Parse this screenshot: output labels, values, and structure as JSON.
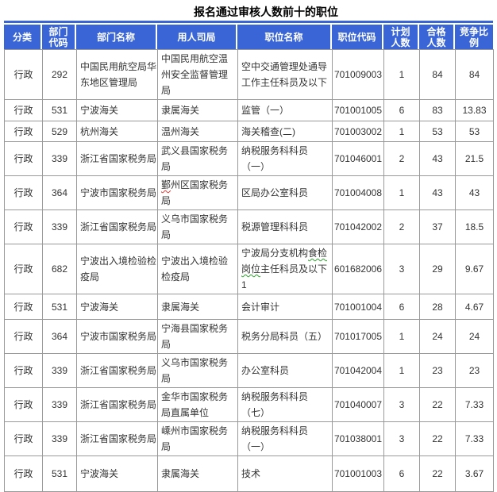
{
  "title": "报名通过审核人数前十的职位",
  "colors": {
    "header_bg": "#3a65d6",
    "header_text": "#ffffff",
    "border": "#999999",
    "body_text": "#333333",
    "spell_red": "#e53935",
    "spell_green": "#2ea12e"
  },
  "table": {
    "columns": [
      "分类",
      "部门代码",
      "部门名称",
      "用人司局",
      "职位名称",
      "职位代码",
      "计划人数",
      "合格人数",
      "竞争比例"
    ],
    "rows": [
      {
        "cells": [
          "行政",
          "292",
          "中国民用航空局华东地区管理局",
          "中国民用航空温州安全监督管理局",
          "空中交通管理处通导工作主任科员及以下",
          "701009003",
          "1",
          "84",
          "84"
        ]
      },
      {
        "cells": [
          "行政",
          "531",
          "宁波海关",
          "隶属海关",
          "监管（一）",
          "701001005",
          "6",
          "83",
          "13.83"
        ]
      },
      {
        "cells": [
          "行政",
          "529",
          "杭州海关",
          "温州海关",
          "海关稽查(二)",
          "701003002",
          "1",
          "53",
          "53"
        ]
      },
      {
        "cells": [
          "行政",
          "339",
          "浙江省国家税务局",
          "武义县国家税务局",
          "纳税服务科科员（一）",
          "701046001",
          "2",
          "43",
          "21.5"
        ]
      },
      {
        "cells": [
          "行政",
          "364",
          "宁波市国家税务局",
          "鄞州区国家税务局",
          "区局办公室科员",
          "701004008",
          "1",
          "43",
          "43"
        ],
        "marks": [
          {
            "col": 3,
            "text": "鄞",
            "color": "red"
          }
        ]
      },
      {
        "cells": [
          "行政",
          "339",
          "浙江省国家税务局",
          "义乌市国家税务局",
          "税源管理科科员",
          "701042002",
          "2",
          "37",
          "18.5"
        ]
      },
      {
        "cells": [
          "行政",
          "682",
          "宁波出入境检验检疫局",
          "宁波出入境检验检疫局",
          "宁波局分支机构食检岗位主任科员及以下1",
          "601682006",
          "3",
          "29",
          "9.67"
        ],
        "marks": [
          {
            "col": 4,
            "text": "食检",
            "color": "green"
          },
          {
            "col": 4,
            "text": "岗位",
            "color": "green"
          }
        ]
      },
      {
        "cells": [
          "行政",
          "531",
          "宁波海关",
          "隶属海关",
          "会计审计",
          "701001004",
          "6",
          "28",
          "4.67"
        ]
      },
      {
        "cells": [
          "行政",
          "364",
          "宁波市国家税务局",
          "宁海县国家税务局",
          "税务分局科员（五）",
          "701017005",
          "1",
          "24",
          "24"
        ]
      },
      {
        "cells": [
          "行政",
          "339",
          "浙江省国家税务局",
          "义乌市国家税务局",
          "办公室科员",
          "701042004",
          "1",
          "23",
          "23"
        ]
      },
      {
        "cells": [
          "行政",
          "339",
          "浙江省国家税务局",
          "金华市国家税务局直属单位",
          "纳税服务科科员（七）",
          "701040007",
          "3",
          "22",
          "7.33"
        ]
      },
      {
        "cells": [
          "行政",
          "339",
          "浙江省国家税务局",
          "嵊州市国家税务局",
          "纳税服务科科员（一）",
          "701038001",
          "3",
          "22",
          "7.33"
        ]
      },
      {
        "cells": [
          "行政",
          "531",
          "宁波海关",
          "隶属海关",
          "技术",
          "701001003",
          "6",
          "22",
          "3.67"
        ]
      }
    ]
  }
}
